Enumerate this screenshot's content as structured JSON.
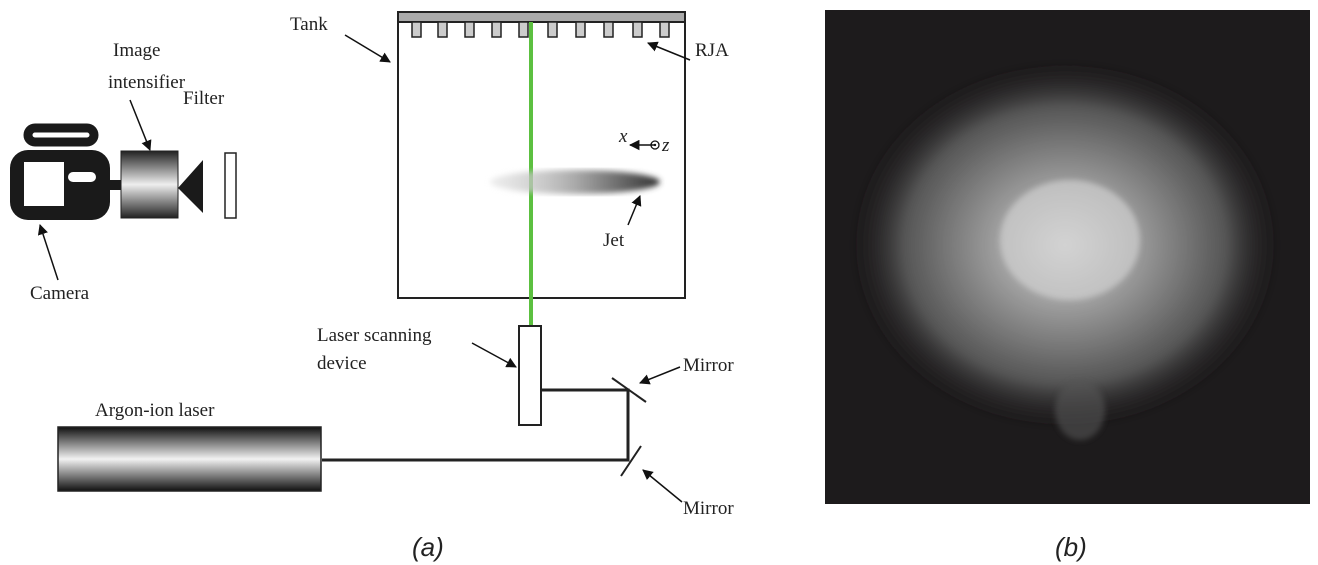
{
  "panel_a": {
    "tank": "Tank",
    "rja": "RJA",
    "image_intensifier": [
      "Image",
      "intensifier"
    ],
    "filter": "Filter",
    "camera": "Camera",
    "axis_x": "x",
    "axis_z": "z",
    "jet": "Jet",
    "laser_scanning_device": [
      "Laser scanning",
      "device"
    ],
    "mirror_top": "Mirror",
    "mirror_bottom": "Mirror",
    "argon_ion_laser": "Argon-ion laser"
  },
  "captions": [
    "(a)",
    "(b)"
  ]
}
